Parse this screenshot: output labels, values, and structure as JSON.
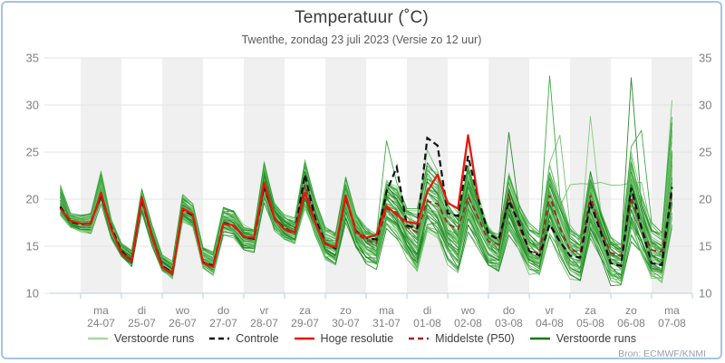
{
  "header": {
    "title": "Temperatuur (˚C)",
    "subtitle": "Twenthe, zondag 23 juli 2023 (Versie zo 12 uur)"
  },
  "attribution": "Bron: ECMWF/KNMI",
  "legend": {
    "items": [
      {
        "label": "Verstoorde runs",
        "color": "#abd69e",
        "dash": false
      },
      {
        "label": "Controle",
        "color": "#111111",
        "dash": true
      },
      {
        "label": "Hoge resolutie",
        "color": "#e8150d",
        "dash": false
      },
      {
        "label": "Middelste (P50)",
        "color": "#9e2a25",
        "dash": true
      },
      {
        "label": "Verstoorde runs",
        "color": "#0b7a0b",
        "dash": false
      }
    ]
  },
  "axes": {
    "y_ticks": [
      10,
      15,
      20,
      25,
      30,
      35
    ],
    "x_ticks": [
      {
        "day": "ma",
        "date": "24-07"
      },
      {
        "day": "di",
        "date": "25-07"
      },
      {
        "day": "wo",
        "date": "26-07"
      },
      {
        "day": "do",
        "date": "27-07"
      },
      {
        "day": "vr",
        "date": "28-07"
      },
      {
        "day": "za",
        "date": "29-07"
      },
      {
        "day": "zo",
        "date": "30-07"
      },
      {
        "day": "ma",
        "date": "31-07"
      },
      {
        "day": "di",
        "date": "01-08"
      },
      {
        "day": "wo",
        "date": "02-08"
      },
      {
        "day": "do",
        "date": "03-08"
      },
      {
        "day": "vr",
        "date": "04-08"
      },
      {
        "day": "za",
        "date": "05-08"
      },
      {
        "day": "zo",
        "date": "06-08"
      },
      {
        "day": "ma",
        "date": "07-08"
      }
    ]
  },
  "colors": {
    "border": "#a5c3e2",
    "band_gray": "#f0f0f0",
    "gridline": "#e3e3e3",
    "axis_line": "#b9cde4",
    "tick_label": "#808080",
    "ensemble_palette": [
      "#63bb5f",
      "#2f9e32",
      "#187a1c",
      "#7cc878"
    ],
    "control": "#111111",
    "hires": "#e8150d",
    "median": "#9e2a25"
  },
  "chart_data": {
    "type": "line",
    "title": "Temperatuur (˚C)",
    "subtitle": "Twenthe, zondag 23 juli 2023 (Versie zo 12 uur)",
    "x_start": "2023-07-23 12:00",
    "x_step_hours": 6,
    "n_steps": 61,
    "ylim": [
      10,
      35
    ],
    "grid": true,
    "legend_position": "bottom",
    "n_ensemble_members": 50,
    "series": [
      {
        "name": "Controle",
        "style": "dashed-black",
        "values": [
          19.2,
          17.6,
          17.3,
          17.5,
          20.5,
          17.0,
          14.5,
          13.4,
          20.0,
          16.0,
          12.9,
          12.2,
          18.9,
          18.3,
          13.3,
          12.9,
          17.5,
          17.2,
          16.0,
          15.8,
          21.4,
          18.0,
          16.9,
          16.4,
          22.6,
          18.0,
          15.3,
          14.8,
          20.3,
          16.6,
          15.9,
          15.7,
          20.8,
          23.4,
          17.2,
          16.9,
          26.5,
          25.7,
          18.5,
          18.2,
          24.6,
          20.0,
          16.3,
          15.7,
          19.8,
          17.5,
          14.5,
          14.0,
          17.3,
          15.5,
          14.0,
          13.8,
          19.6,
          16.5,
          13.2,
          12.9,
          21.2,
          17.0,
          13.2,
          13.0,
          21.3
        ]
      },
      {
        "name": "Hoge resolutie",
        "style": "solid-red",
        "values": [
          19.0,
          17.7,
          17.4,
          17.4,
          20.7,
          16.8,
          14.3,
          13.4,
          20.2,
          16.0,
          12.8,
          12.1,
          19.0,
          18.4,
          13.2,
          12.8,
          17.4,
          17.2,
          16.0,
          15.9,
          21.8,
          18.0,
          16.8,
          16.5,
          20.7,
          17.5,
          15.2,
          14.9,
          20.4,
          16.5,
          15.9,
          16.2,
          19.3,
          18.3,
          17.6,
          17.4,
          20.8,
          22.6,
          19.6,
          19.0,
          26.8,
          20.0
        ]
      },
      {
        "name": "Middelste (P50)",
        "style": "dashed-darkred",
        "values": [
          19.1,
          17.6,
          17.4,
          17.5,
          20.4,
          16.9,
          14.4,
          13.5,
          20.0,
          16.0,
          12.9,
          12.2,
          18.9,
          18.2,
          13.3,
          13.0,
          17.4,
          17.1,
          16.0,
          15.9,
          21.2,
          17.9,
          16.7,
          16.3,
          21.5,
          17.8,
          15.2,
          14.8,
          20.2,
          16.4,
          15.6,
          15.3,
          19.0,
          18.6,
          17.0,
          16.5,
          19.8,
          19.5,
          17.4,
          16.8,
          20.3,
          18.0,
          15.5,
          15.2,
          20.4,
          17.0,
          14.5,
          14.2,
          20.4,
          17.0,
          14.6,
          14.3,
          20.4,
          16.8,
          14.3,
          14.0,
          20.2,
          16.8,
          14.6,
          14.4,
          20.6
        ]
      },
      {
        "name": "Verstoorde runs envelope min",
        "style": "envelope",
        "values": [
          18.0,
          16.8,
          16.5,
          16.3,
          19.5,
          15.8,
          13.8,
          12.8,
          18.5,
          15.0,
          12.2,
          11.4,
          17.5,
          16.8,
          12.5,
          11.8,
          16.2,
          15.8,
          14.5,
          14.2,
          19.5,
          16.5,
          15.5,
          15.0,
          18.5,
          16.0,
          13.5,
          12.8,
          17.5,
          14.5,
          13.0,
          12.5,
          16.5,
          15.5,
          13.5,
          11.5,
          16.0,
          15.5,
          13.0,
          11.9,
          16.5,
          14.5,
          12.5,
          11.8,
          16.0,
          14.0,
          11.8,
          11.4,
          15.5,
          13.5,
          11.5,
          11.0,
          15.5,
          13.5,
          10.6,
          10.4,
          15.0,
          13.5,
          11.0,
          10.8,
          16.5
        ]
      },
      {
        "name": "Verstoorde runs envelope max",
        "style": "envelope",
        "values": [
          21.5,
          18.5,
          18.3,
          18.6,
          23.1,
          18.0,
          15.5,
          14.8,
          21.5,
          17.5,
          14.2,
          13.5,
          20.5,
          19.5,
          15.0,
          14.5,
          19.3,
          19.0,
          17.5,
          17.3,
          24.7,
          20.0,
          18.5,
          18.0,
          24.2,
          20.0,
          17.0,
          16.5,
          22.8,
          19.0,
          17.5,
          17.0,
          23.0,
          22.0,
          19.5,
          19.0,
          24.0,
          23.0,
          20.0,
          19.0,
          24.5,
          21.0,
          18.0,
          17.0,
          23.5,
          20.0,
          17.5,
          16.5,
          24.0,
          20.5,
          17.5,
          16.5,
          24.0,
          20.0,
          17.0,
          16.0,
          26.0,
          21.0,
          17.5,
          16.5,
          29.0
        ]
      }
    ],
    "ensemble_outlier_peaks": [
      {
        "t": 32,
        "v": 26.2
      },
      {
        "t": 36,
        "v": 25.2
      },
      {
        "t": 40,
        "v": 26.3
      },
      {
        "t": 44,
        "v": 27.1
      },
      {
        "t": 48,
        "v": 33.1
      },
      {
        "t": 49,
        "v": 26.8
      },
      {
        "t": 52,
        "v": 28.8
      },
      {
        "t": 56,
        "v": 32.9
      },
      {
        "t": 57,
        "v": 27.3
      },
      {
        "t": 60,
        "v": 30.5
      }
    ],
    "ensemble_flat_outlier": {
      "t_from": 50,
      "t_to": 57,
      "value": 21.6
    }
  }
}
